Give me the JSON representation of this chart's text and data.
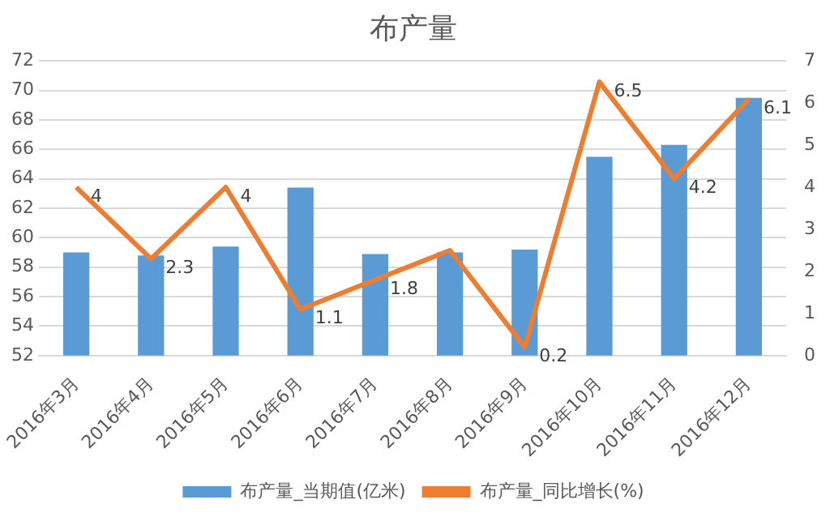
{
  "chart_data": {
    "type": "bar",
    "title": "布产量",
    "categories": [
      "2016年3月",
      "2016年4月",
      "2016年5月",
      "2016年6月",
      "2016年7月",
      "2016年8月",
      "2016年9月",
      "2016年10月",
      "2016年11月",
      "2016年12月"
    ],
    "series": [
      {
        "name": "布产量_当期值(亿米)",
        "color": "#5b9bd5",
        "values": [
          59.0,
          58.8,
          59.4,
          63.4,
          58.9,
          59.0,
          59.2,
          65.5,
          66.3,
          69.5
        ]
      },
      {
        "name": "布产量_同比增长(%)",
        "type": "line",
        "axis": "y2",
        "color": "#ed7d31",
        "marker": "none",
        "values": [
          4,
          2.3,
          4,
          1.1,
          1.8,
          2.5,
          0.2,
          6.5,
          4.2,
          6.1
        ],
        "value_labels": [
          "4",
          "2.3",
          "4",
          "1.1",
          "1.8",
          null,
          "0.2",
          "6.5",
          "4.2",
          "6.1"
        ]
      }
    ],
    "ylim": [
      52,
      72
    ],
    "yticks": [
      52,
      54,
      56,
      58,
      60,
      62,
      64,
      66,
      68,
      70,
      72
    ],
    "y2lim": [
      0,
      7
    ],
    "y2ticks": [
      0,
      1,
      2,
      3,
      4,
      5,
      6,
      7
    ],
    "grid": "y",
    "legend": "bottom"
  }
}
